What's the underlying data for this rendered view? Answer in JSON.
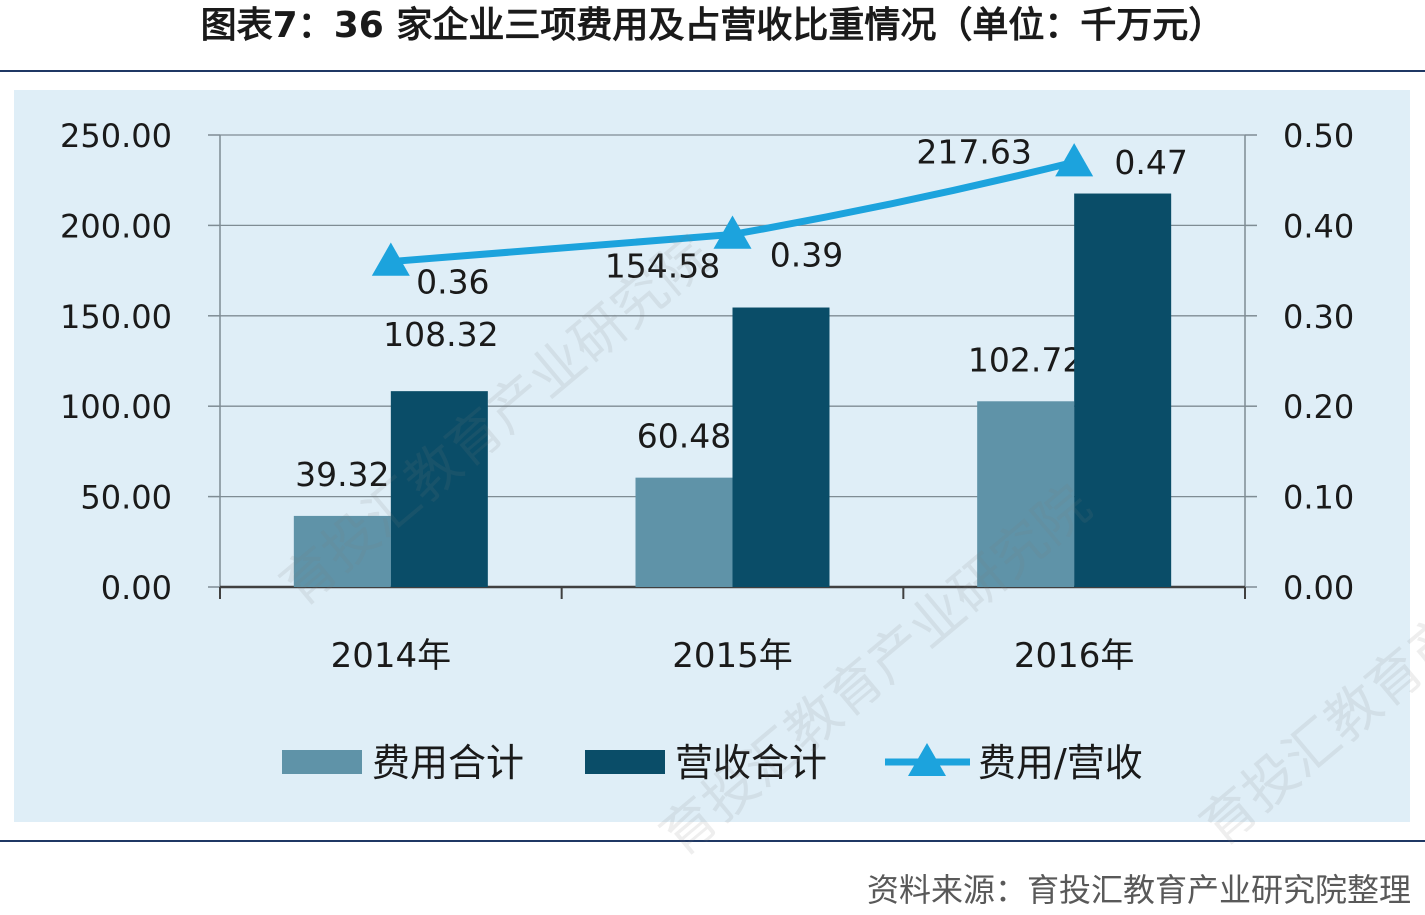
{
  "title": "图表7：36 家企业三项费用及占营收比重情况（单位：千万元）",
  "source": "资料来源：育投汇教育产业研究院整理",
  "watermark": [
    "育投汇教育产业研究院",
    "育投汇教育产业研究院",
    "育投汇教育产业研究院"
  ],
  "colors": {
    "expense": "#5f93a8",
    "revenue": "#0a4d68",
    "ratio": "#1ca3dd",
    "grid": "#7f8c94",
    "background": "#dfeef7"
  },
  "chart_data": {
    "type": "bar",
    "categories": [
      "2014年",
      "2015年",
      "2016年"
    ],
    "series": [
      {
        "name": "费用合计",
        "type": "bar",
        "axis": "left",
        "values": [
          39.32,
          60.48,
          102.72
        ],
        "labels": [
          "39.32",
          "60.48",
          "102.72"
        ]
      },
      {
        "name": "营收合计",
        "type": "bar",
        "axis": "left",
        "values": [
          108.32,
          154.58,
          217.63
        ],
        "labels": [
          "108.32",
          "154.58",
          "217.63"
        ]
      },
      {
        "name": "费用/营收",
        "type": "line",
        "axis": "right",
        "marker": "triangle",
        "values": [
          0.36,
          0.39,
          0.47
        ],
        "labels": [
          "0.36",
          "0.39",
          "0.47"
        ]
      }
    ],
    "ylim": [
      0,
      250
    ],
    "yticks": [
      "0.00",
      "50.00",
      "100.00",
      "150.00",
      "200.00",
      "250.00"
    ],
    "y2lim": [
      0,
      0.5
    ],
    "y2ticks": [
      "0.00",
      "0.10",
      "0.20",
      "0.30",
      "0.40",
      "0.50"
    ],
    "grid": true,
    "legend": "bottom"
  }
}
